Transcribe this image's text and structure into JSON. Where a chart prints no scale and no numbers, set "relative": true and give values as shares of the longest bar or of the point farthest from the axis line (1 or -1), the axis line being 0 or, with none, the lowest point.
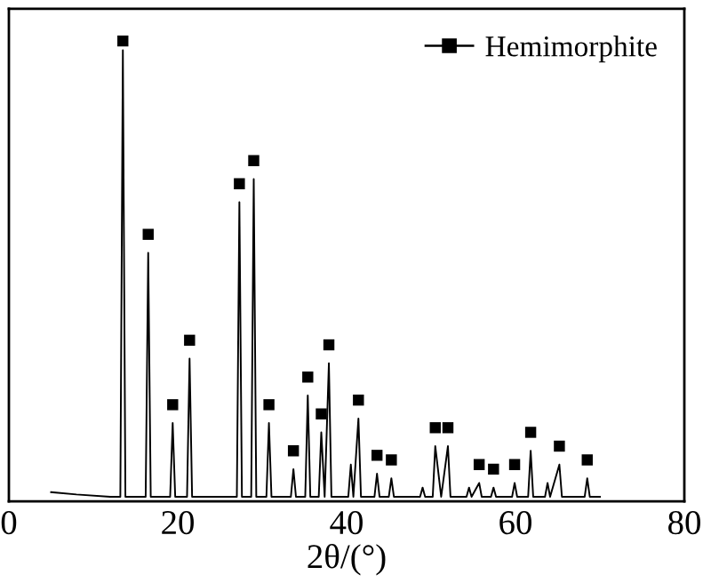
{
  "chart_data": {
    "type": "line",
    "relative": true,
    "xlabel": "2θ/(°)",
    "xlim": [
      0,
      80
    ],
    "xticks": [
      0,
      20,
      40,
      60,
      80
    ],
    "tick_labels": "x",
    "legend": "top right",
    "grid": false,
    "series": [
      {
        "color": "#000000",
        "marker": "none",
        "x": [
          5,
          8,
          12,
          13.2,
          13.5,
          13.8,
          16.2,
          16.5,
          16.8,
          19.1,
          19.4,
          19.7,
          21.1,
          21.4,
          21.7,
          27.0,
          27.3,
          27.6,
          28.7,
          29.0,
          29.3,
          30.5,
          30.8,
          31.1,
          33.4,
          33.7,
          34.0,
          35.1,
          35.4,
          35.7,
          36.7,
          37.0,
          37.4,
          37.9,
          38.2,
          40.2,
          40.5,
          40.8,
          41.4,
          41.7,
          43.3,
          43.6,
          43.9,
          45.0,
          45.3,
          45.6,
          48.7,
          49.0,
          49.3,
          50.2,
          50.5,
          51.2,
          52.0,
          52.3,
          54.2,
          54.5,
          54.8,
          55.7,
          56.0,
          57.1,
          57.4,
          57.7,
          59.6,
          59.9,
          60.2,
          61.5,
          61.8,
          62.1,
          63.5,
          63.8,
          64.1,
          65.2,
          65.5,
          68.2,
          68.5,
          68.8,
          70
        ],
        "values": [
          0.02,
          0.015,
          0.01,
          0.01,
          0.98,
          0.01,
          0.01,
          0.54,
          0.01,
          0.01,
          0.17,
          0.01,
          0.01,
          0.31,
          0.01,
          0.01,
          0.65,
          0.01,
          0.01,
          0.7,
          0.01,
          0.01,
          0.17,
          0.01,
          0.01,
          0.07,
          0.01,
          0.01,
          0.23,
          0.01,
          0.01,
          0.15,
          0.01,
          0.3,
          0.01,
          0.01,
          0.08,
          0.01,
          0.18,
          0.01,
          0.01,
          0.06,
          0.01,
          0.01,
          0.05,
          0.01,
          0.01,
          0.03,
          0.01,
          0.01,
          0.12,
          0.01,
          0.12,
          0.01,
          0.01,
          0.03,
          0.01,
          0.04,
          0.01,
          0.01,
          0.03,
          0.01,
          0.01,
          0.04,
          0.01,
          0.01,
          0.11,
          0.01,
          0.01,
          0.04,
          0.01,
          0.08,
          0.01,
          0.01,
          0.05,
          0.01,
          0.01
        ]
      },
      {
        "type": "scatter",
        "name": "Hemimorphite",
        "color": "#000000",
        "marker": "square",
        "x": [
          13.5,
          16.5,
          19.4,
          21.4,
          27.3,
          29.0,
          30.8,
          33.7,
          35.4,
          37.0,
          37.9,
          41.4,
          43.6,
          45.3,
          50.5,
          52.0,
          55.7,
          57.4,
          59.9,
          61.8,
          65.2,
          68.5
        ],
        "values": [
          1.0,
          0.58,
          0.21,
          0.35,
          0.69,
          0.74,
          0.21,
          0.11,
          0.27,
          0.19,
          0.34,
          0.22,
          0.1,
          0.09,
          0.16,
          0.16,
          0.08,
          0.07,
          0.08,
          0.15,
          0.12,
          0.09
        ]
      }
    ]
  }
}
